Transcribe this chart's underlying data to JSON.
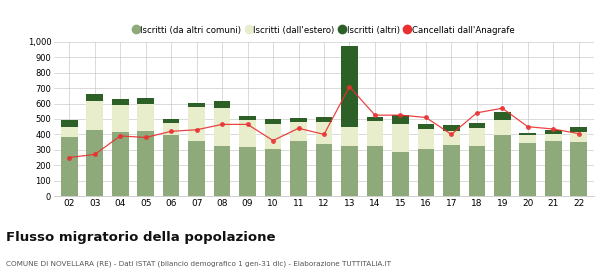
{
  "years": [
    "02",
    "03",
    "04",
    "05",
    "06",
    "07",
    "08",
    "09",
    "10",
    "11",
    "12",
    "13",
    "14",
    "15",
    "16",
    "17",
    "18",
    "19",
    "20",
    "21",
    "22"
  ],
  "iscritti_altri_comuni": [
    380,
    430,
    415,
    420,
    395,
    355,
    325,
    320,
    305,
    355,
    335,
    325,
    325,
    285,
    305,
    330,
    325,
    395,
    345,
    360,
    350
  ],
  "iscritti_estero": [
    70,
    190,
    175,
    175,
    80,
    220,
    245,
    175,
    165,
    125,
    145,
    120,
    165,
    185,
    130,
    90,
    115,
    100,
    50,
    45,
    65
  ],
  "iscritti_altri": [
    45,
    40,
    40,
    40,
    25,
    30,
    45,
    25,
    30,
    25,
    30,
    530,
    25,
    55,
    30,
    40,
    35,
    50,
    15,
    25,
    30
  ],
  "cancellati": [
    250,
    270,
    390,
    380,
    420,
    430,
    465,
    465,
    360,
    440,
    400,
    710,
    525,
    525,
    510,
    400,
    540,
    570,
    450,
    435,
    405
  ],
  "color_altri_comuni": "#8faa7a",
  "color_estero": "#e8edcc",
  "color_altri": "#2d6027",
  "color_cancellati": "#e83030",
  "title": "Flusso migratorio della popolazione",
  "subtitle": "COMUNE DI NOVELLARA (RE) - Dati ISTAT (bilancio demografico 1 gen-31 dic) - Elaborazione TUTTITALIA.IT",
  "legend_labels": [
    "Iscritti (da altri comuni)",
    "Iscritti (dall'estero)",
    "Iscritti (altri)",
    "Cancellati dall'Anagrafe"
  ],
  "ylim": [
    0,
    1000
  ],
  "yticks": [
    0,
    100,
    200,
    300,
    400,
    500,
    600,
    700,
    800,
    900,
    1000
  ],
  "bg_color": "#ffffff",
  "grid_color": "#cccccc"
}
